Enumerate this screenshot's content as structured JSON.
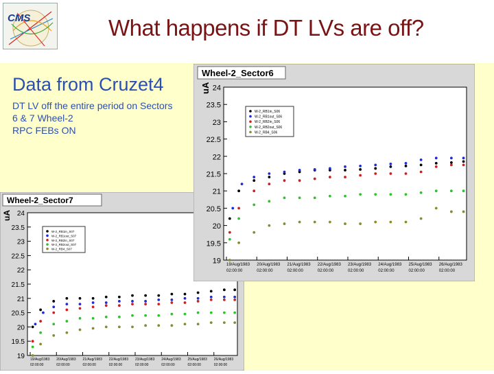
{
  "slide": {
    "title": "What happens if DT LVs are off?",
    "info_title": "Data from Cruzet4",
    "info_lines": [
      "DT LV off the entire period on Sectors",
      "6 & 7 Wheel-2",
      "RPC FEBs ON"
    ]
  },
  "colors": {
    "title": "#7a1414",
    "text": "#2b4fb0",
    "background": "#ffffcc",
    "plot_bg": "#ffffff",
    "frame_bg": "#d8d8d8"
  },
  "chart_data": [
    {
      "type": "scatter",
      "title": "Wheel-2_Sector6",
      "ylabel": "uA",
      "ylim": [
        19,
        24
      ],
      "yticks": [
        "19",
        "19.5",
        "20",
        "20.5",
        "21",
        "21.5",
        "22",
        "22.5",
        "23",
        "23.5",
        "24"
      ],
      "xticks": [
        [
          "19/Aug/1983",
          "02:00:00"
        ],
        [
          "20/Aug/1983",
          "02:00:00"
        ],
        [
          "21/Aug/1983",
          "02:00:00"
        ],
        [
          "22/Aug/1983",
          "02:00:00"
        ],
        [
          "23/Aug/1983",
          "02:00:00"
        ],
        [
          "24/Aug/1983",
          "02:00:00"
        ],
        [
          "25/Aug/1983",
          "02:00:00"
        ],
        [
          "26/Aug/1983",
          "02:00:00"
        ]
      ],
      "legend": [
        "W-2_RB1in_S06",
        "W-2_RB1out_S06",
        "W-2_RB2in_S06",
        "W-2_RB2out_S06",
        "W-2_RB4_S06"
      ],
      "legend_position": "top-left",
      "series": [
        {
          "name": "W-2_RB1in_S06",
          "color": "#000000",
          "values": [
            [
              0.2,
              20.2
            ],
            [
              0.5,
              21.0
            ],
            [
              1,
              21.3
            ],
            [
              1.5,
              21.4
            ],
            [
              2,
              21.5
            ],
            [
              2.5,
              21.55
            ],
            [
              3,
              21.6
            ],
            [
              3.5,
              21.6
            ],
            [
              4,
              21.6
            ],
            [
              4.5,
              21.62
            ],
            [
              5,
              21.65
            ],
            [
              5.5,
              21.7
            ],
            [
              6,
              21.72
            ],
            [
              6.5,
              21.75
            ],
            [
              7,
              21.8
            ],
            [
              7.5,
              21.82
            ],
            [
              7.9,
              21.85
            ]
          ]
        },
        {
          "name": "W-2_RB1out_S06",
          "color": "#1e2bd6",
          "values": [
            [
              0.3,
              20.5
            ],
            [
              0.6,
              21.2
            ],
            [
              1,
              21.4
            ],
            [
              1.5,
              21.5
            ],
            [
              2,
              21.55
            ],
            [
              2.5,
              21.6
            ],
            [
              3,
              21.62
            ],
            [
              3.5,
              21.65
            ],
            [
              4,
              21.7
            ],
            [
              4.5,
              21.72
            ],
            [
              5,
              21.75
            ],
            [
              5.5,
              21.78
            ],
            [
              6,
              21.8
            ],
            [
              6.5,
              21.9
            ],
            [
              7,
              21.95
            ],
            [
              7.5,
              21.95
            ],
            [
              7.9,
              21.95
            ]
          ]
        },
        {
          "name": "W-2_RB2in_S06",
          "color": "#cc2020",
          "values": [
            [
              0.2,
              19.8
            ],
            [
              0.5,
              20.5
            ],
            [
              1,
              21.0
            ],
            [
              1.5,
              21.2
            ],
            [
              2,
              21.3
            ],
            [
              2.5,
              21.3
            ],
            [
              3,
              21.35
            ],
            [
              3.5,
              21.4
            ],
            [
              4,
              21.4
            ],
            [
              4.5,
              21.45
            ],
            [
              5,
              21.5
            ],
            [
              5.5,
              21.5
            ],
            [
              6,
              21.5
            ],
            [
              6.5,
              21.55
            ],
            [
              7,
              21.7
            ],
            [
              7.5,
              21.75
            ],
            [
              7.9,
              21.75
            ]
          ]
        },
        {
          "name": "W-2_RB2out_S06",
          "color": "#30c030",
          "values": [
            [
              0.2,
              19.6
            ],
            [
              0.5,
              20.2
            ],
            [
              1,
              20.6
            ],
            [
              1.5,
              20.7
            ],
            [
              2,
              20.8
            ],
            [
              2.5,
              20.8
            ],
            [
              3,
              20.8
            ],
            [
              3.5,
              20.85
            ],
            [
              4,
              20.85
            ],
            [
              4.5,
              20.9
            ],
            [
              5,
              20.9
            ],
            [
              5.5,
              20.9
            ],
            [
              6,
              20.9
            ],
            [
              6.5,
              20.95
            ],
            [
              7,
              21.0
            ],
            [
              7.5,
              21.0
            ],
            [
              7.9,
              21.0
            ]
          ]
        },
        {
          "name": "W-2_RB4_S06",
          "color": "#8a8a30",
          "values": [
            [
              0.2,
              19.0
            ],
            [
              0.5,
              19.5
            ],
            [
              1,
              19.8
            ],
            [
              1.5,
              20.0
            ],
            [
              2,
              20.05
            ],
            [
              2.5,
              20.1
            ],
            [
              3,
              20.1
            ],
            [
              3.5,
              20.1
            ],
            [
              4,
              20.05
            ],
            [
              4.5,
              20.05
            ],
            [
              5,
              20.1
            ],
            [
              5.5,
              20.1
            ],
            [
              6,
              20.1
            ],
            [
              6.5,
              20.2
            ],
            [
              7,
              20.5
            ],
            [
              7.5,
              20.4
            ],
            [
              7.9,
              20.4
            ]
          ]
        }
      ]
    },
    {
      "type": "scatter",
      "title": "Wheel-2_Sector7",
      "ylabel": "uA",
      "ylim": [
        19,
        24
      ],
      "yticks": [
        "19",
        "19.5",
        "20",
        "20.5",
        "21",
        "21.5",
        "22",
        "22.5",
        "23",
        "23.5",
        "24"
      ],
      "xticks": [
        [
          "19/Aug/1983",
          "02:00:00"
        ],
        [
          "20/Aug/1983",
          "02:00:00"
        ],
        [
          "21/Aug/1983",
          "02:00:00"
        ],
        [
          "22/Aug/1983",
          "02:00:00"
        ],
        [
          "23/Aug/1983",
          "02:00:00"
        ],
        [
          "24/Aug/1983",
          "02:00:00"
        ],
        [
          "25/Aug/1983",
          "02:00:00"
        ],
        [
          "26/Aug/1983",
          "02:00:00"
        ]
      ],
      "legend": [
        "W-2_RB1in_S07",
        "W-2_RB1out_S07",
        "W-2_RB2in_S07",
        "W-2_RB2out_S07",
        "W-2_RB4_S07"
      ],
      "legend_position": "top-left",
      "series": [
        {
          "name": "W-2_RB1in_S07",
          "color": "#000000",
          "values": [
            [
              0.2,
              20.0
            ],
            [
              0.5,
              20.6
            ],
            [
              1,
              20.9
            ],
            [
              1.5,
              21.0
            ],
            [
              2,
              21.0
            ],
            [
              2.5,
              21.0
            ],
            [
              3,
              21.05
            ],
            [
              3.5,
              21.05
            ],
            [
              4,
              21.1
            ],
            [
              4.5,
              21.1
            ],
            [
              5,
              21.1
            ],
            [
              5.5,
              21.15
            ],
            [
              6,
              21.15
            ],
            [
              6.5,
              21.2
            ],
            [
              7,
              21.25
            ],
            [
              7.5,
              21.3
            ],
            [
              7.9,
              21.3
            ]
          ]
        },
        {
          "name": "W-2_RB1out_S07",
          "color": "#1e2bd6",
          "values": [
            [
              0.3,
              20.1
            ],
            [
              0.6,
              20.5
            ],
            [
              1,
              20.7
            ],
            [
              1.5,
              20.8
            ],
            [
              2,
              20.8
            ],
            [
              2.5,
              20.85
            ],
            [
              3,
              20.85
            ],
            [
              3.5,
              20.9
            ],
            [
              4,
              20.9
            ],
            [
              4.5,
              20.9
            ],
            [
              5,
              20.95
            ],
            [
              5.5,
              20.95
            ],
            [
              6,
              21.0
            ],
            [
              6.5,
              21.0
            ],
            [
              7,
              21.05
            ],
            [
              7.5,
              21.05
            ],
            [
              7.9,
              21.05
            ]
          ]
        },
        {
          "name": "W-2_RB2in_S07",
          "color": "#cc2020",
          "values": [
            [
              0.2,
              19.5
            ],
            [
              0.5,
              20.2
            ],
            [
              1,
              20.5
            ],
            [
              1.5,
              20.6
            ],
            [
              2,
              20.65
            ],
            [
              2.5,
              20.7
            ],
            [
              3,
              20.75
            ],
            [
              3.5,
              20.75
            ],
            [
              4,
              20.8
            ],
            [
              4.5,
              20.8
            ],
            [
              5,
              20.8
            ],
            [
              5.5,
              20.85
            ],
            [
              6,
              20.85
            ],
            [
              6.5,
              20.9
            ],
            [
              7,
              20.95
            ],
            [
              7.5,
              20.95
            ],
            [
              7.9,
              20.95
            ]
          ]
        },
        {
          "name": "W-2_RB2out_S07",
          "color": "#30c030",
          "values": [
            [
              0.2,
              19.3
            ],
            [
              0.5,
              19.8
            ],
            [
              1,
              20.1
            ],
            [
              1.5,
              20.2
            ],
            [
              2,
              20.3
            ],
            [
              2.5,
              20.3
            ],
            [
              3,
              20.35
            ],
            [
              3.5,
              20.35
            ],
            [
              4,
              20.4
            ],
            [
              4.5,
              20.4
            ],
            [
              5,
              20.4
            ],
            [
              5.5,
              20.45
            ],
            [
              6,
              20.45
            ],
            [
              6.5,
              20.5
            ],
            [
              7,
              20.5
            ],
            [
              7.5,
              20.5
            ],
            [
              7.9,
              20.5
            ]
          ]
        },
        {
          "name": "W-2_RB4_S07",
          "color": "#8a8a30",
          "values": [
            [
              0.2,
              19.0
            ],
            [
              0.5,
              19.4
            ],
            [
              1,
              19.7
            ],
            [
              1.5,
              19.8
            ],
            [
              2,
              19.9
            ],
            [
              2.5,
              19.95
            ],
            [
              3,
              20.0
            ],
            [
              3.5,
              20.0
            ],
            [
              4,
              20.0
            ],
            [
              4.5,
              20.05
            ],
            [
              5,
              20.05
            ],
            [
              5.5,
              20.05
            ],
            [
              6,
              20.1
            ],
            [
              6.5,
              20.1
            ],
            [
              7,
              20.15
            ],
            [
              7.5,
              20.15
            ],
            [
              7.9,
              20.15
            ]
          ]
        }
      ]
    }
  ]
}
